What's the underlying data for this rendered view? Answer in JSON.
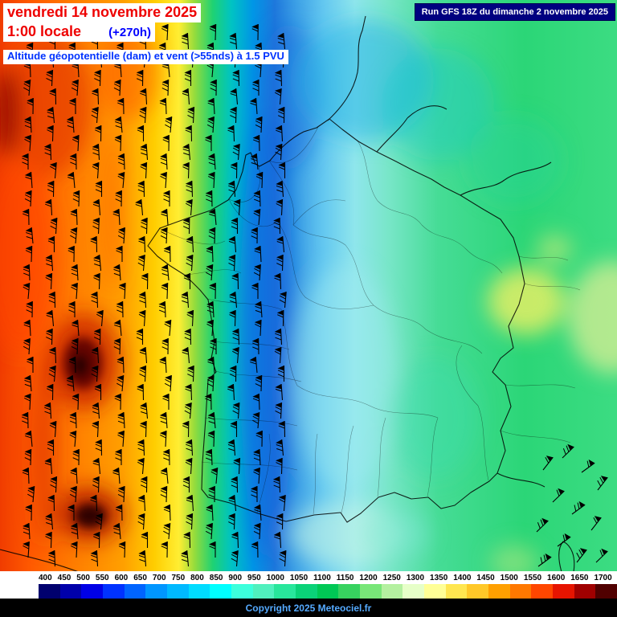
{
  "header": {
    "date": "vendredi 14 novembre 2025",
    "time": "1:00 locale",
    "offset": "(+270h)",
    "subtitle": "Altitude géopotentielle (dam) et vent (>55nds) à 1.5 PVU",
    "run": "Run GFS 18Z du dimanche 2 novembre 2025"
  },
  "footer": {
    "copyright": "Copyright 2025 Meteociel.fr"
  },
  "legend": {
    "values": [
      "400",
      "450",
      "500",
      "550",
      "600",
      "650",
      "700",
      "750",
      "800",
      "850",
      "900",
      "950",
      "1000",
      "1050",
      "1100",
      "1150",
      "1200",
      "1250",
      "1300",
      "1350",
      "1400",
      "1450",
      "1500",
      "1550",
      "1600",
      "1650",
      "1700"
    ],
    "colors": [
      "#00006e",
      "#0000aa",
      "#0000e6",
      "#0032ff",
      "#0064ff",
      "#0096ff",
      "#00b9ff",
      "#00dcff",
      "#00ffff",
      "#3cffdc",
      "#50f0be",
      "#28e69b",
      "#0ad278",
      "#00c855",
      "#37d25f",
      "#78e678",
      "#b4f0a0",
      "#e6ffc8",
      "#ffff96",
      "#ffe650",
      "#ffc828",
      "#ffa000",
      "#ff7800",
      "#ff4600",
      "#e61400",
      "#a00000",
      "#500000"
    ]
  },
  "theme": {
    "date_color": "#ee0000",
    "time_color": "#ee0000",
    "offset_color": "#0000ff",
    "subtitle_color": "#0033ff",
    "run_bg": "#000080",
    "run_color": "#ffffff",
    "copyright_color": "#55aaff",
    "legend_text_color": "#000000"
  }
}
